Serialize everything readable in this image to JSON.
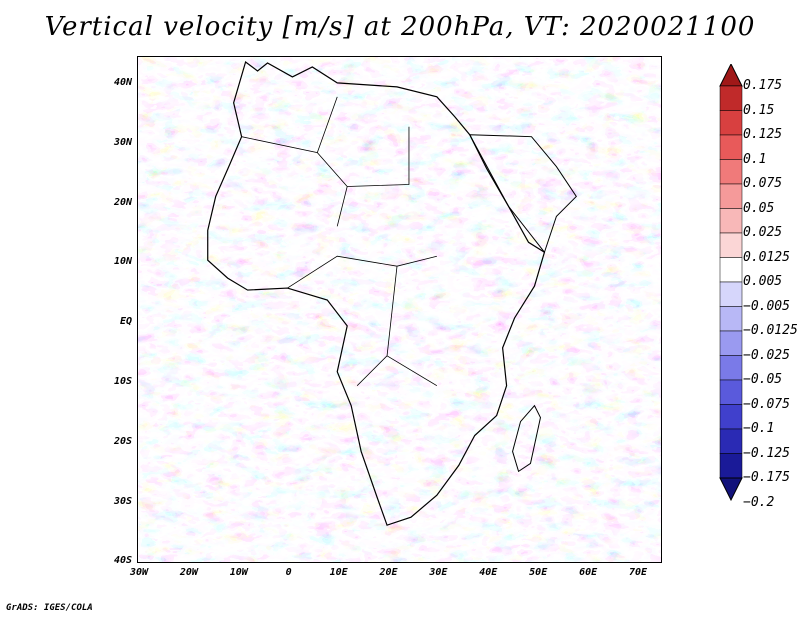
{
  "title": "Vertical velocity [m/s] at 200hPa, VT: 2020021100",
  "credit": "GrADS: IGES/COLA",
  "lat_labels": [
    "40N",
    "30N",
    "20N",
    "10N",
    "EQ",
    "10S",
    "20S",
    "30S",
    "40S"
  ],
  "lon_labels": [
    "30W",
    "20W",
    "10W",
    "0",
    "10E",
    "20E",
    "30E",
    "40E",
    "50E",
    "60E",
    "70E"
  ],
  "colorbar": {
    "levels": [
      "0.175",
      "0.15",
      "0.125",
      "0.1",
      "0.075",
      "0.05",
      "0.025",
      "0.0125",
      "0.005",
      "−0.005",
      "−0.0125",
      "−0.025",
      "−0.05",
      "−0.075",
      "−0.1",
      "−0.125",
      "−0.175",
      "−0.2"
    ],
    "colors": [
      "#a01818",
      "#c02a2a",
      "#d84040",
      "#e85a5a",
      "#f07a7a",
      "#f59a9a",
      "#f8b8b8",
      "#fbd6d6",
      "#ffffff",
      "#d6d6fb",
      "#b8b8f6",
      "#9a9af0",
      "#7a7ae8",
      "#5a5adc",
      "#4040cc",
      "#2a2ab4",
      "#1a1a98",
      "#12127a"
    ]
  },
  "icons": {
    "land": "africa-coastline-icon"
  }
}
